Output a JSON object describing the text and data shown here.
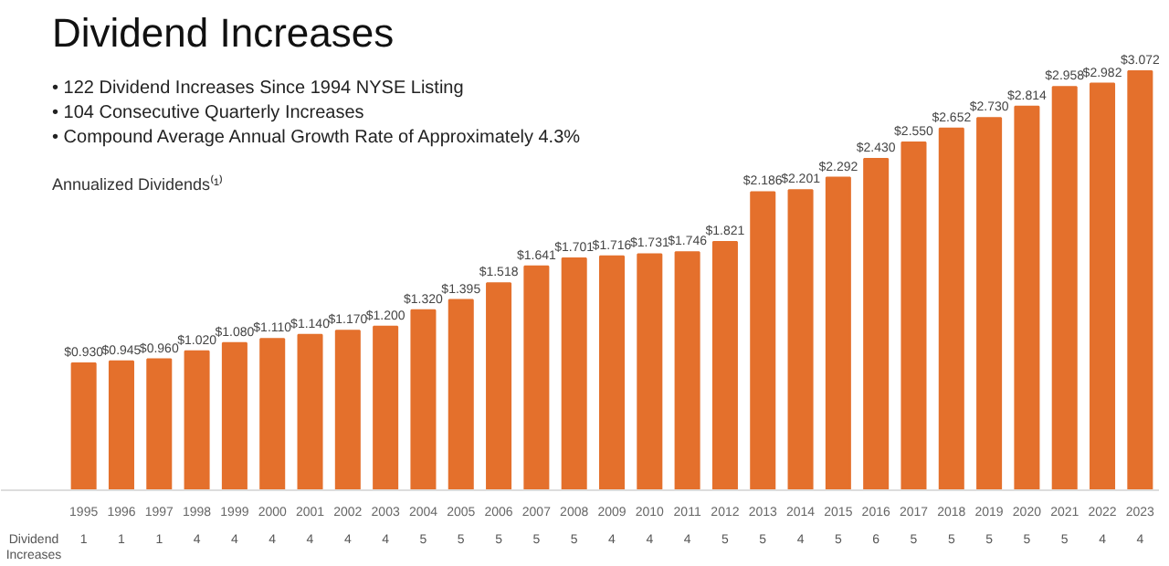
{
  "chart_data": {
    "type": "bar",
    "title": "Dividend Increases",
    "subtitle": "Annualized Dividends⁽¹⁾",
    "categories": [
      "1995",
      "1996",
      "1997",
      "1998",
      "1999",
      "2000",
      "2001",
      "2002",
      "2003",
      "2004",
      "2005",
      "2006",
      "2007",
      "2008",
      "2009",
      "2010",
      "2011",
      "2012",
      "2013",
      "2014",
      "2015",
      "2016",
      "2017",
      "2018",
      "2019",
      "2020",
      "2021",
      "2022",
      "2023"
    ],
    "values": [
      0.93,
      0.945,
      0.96,
      1.02,
      1.08,
      1.11,
      1.14,
      1.17,
      1.2,
      1.32,
      1.395,
      1.518,
      1.641,
      1.701,
      1.716,
      1.731,
      1.746,
      1.821,
      2.186,
      2.201,
      2.292,
      2.43,
      2.55,
      2.652,
      2.73,
      2.814,
      2.958,
      2.982,
      3.072
    ],
    "value_labels": [
      "$0.930",
      "$0.945",
      "$0.960",
      "$1.020",
      "$1.080",
      "$1.110",
      "$1.140",
      "$1.170",
      "$1.200",
      "$1.320",
      "$1.395",
      "$1.518",
      "$1.641",
      "$1.701",
      "$1.716",
      "$1.731",
      "$1.746",
      "$1.821",
      "$2.186",
      "$2.201",
      "$2.292",
      "$2.430",
      "$2.550",
      "$2.652",
      "$2.730",
      "$2.814",
      "$2.958",
      "$2.982",
      "$3.072"
    ],
    "color": "#e4702c",
    "annotations": [
      "• 122 Dividend Increases Since 1994 NYSE Listing",
      "• 104 Consecutive Quarterly Increases",
      "• Compound Average Annual Growth Rate of Approximately 4.3%",
      "Dividend Increases",
      "1",
      "1",
      "1",
      "4",
      "4",
      "4",
      "4",
      "4",
      "4",
      "5",
      "5",
      "5",
      "5",
      "5",
      "4",
      "4",
      "4",
      "5",
      "5",
      "4",
      "5",
      "6",
      "5",
      "5",
      "5",
      "5",
      "5",
      "4",
      "4"
    ],
    "grid": false
  }
}
